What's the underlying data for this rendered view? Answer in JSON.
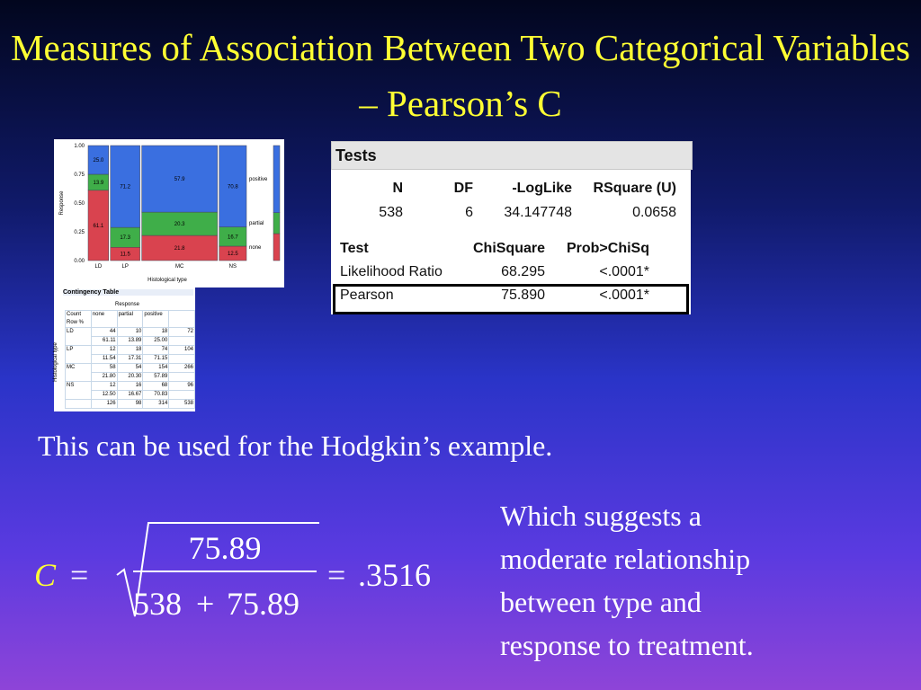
{
  "title": "Measures of Association Between Two Categorical Variables – Pearson’s C",
  "mosaic": {
    "y_label": "Response",
    "x_label": "Histological type",
    "yticks": [
      "1.00",
      "0.75",
      "0.50",
      "0.25",
      "0.00"
    ],
    "legend": [
      "positive",
      "partial",
      "none"
    ],
    "categories": [
      "LD",
      "LP",
      "MC",
      "NS"
    ],
    "cells": [
      [
        "61.1",
        "13.9",
        "25.0"
      ],
      [
        "11.5",
        "17.3",
        "71.2"
      ],
      [
        "21.8",
        "20.3",
        "57.9"
      ],
      [
        "12.5",
        "16.7",
        "70.8"
      ]
    ]
  },
  "contingency": {
    "title": "Contingency Table",
    "col_group": "Response",
    "row_group": "Histological type",
    "corner": [
      "Count",
      "Row %"
    ],
    "columns": [
      "none",
      "partial",
      "positive"
    ],
    "rows": [
      {
        "label": "LD",
        "counts": [
          "44",
          "10",
          "18",
          "72"
        ],
        "pct": [
          "61.11",
          "13.89",
          "25.00"
        ]
      },
      {
        "label": "LP",
        "counts": [
          "12",
          "18",
          "74",
          "104"
        ],
        "pct": [
          "11.54",
          "17.31",
          "71.15"
        ]
      },
      {
        "label": "MC",
        "counts": [
          "58",
          "54",
          "154",
          "266"
        ],
        "pct": [
          "21.80",
          "20.30",
          "57.89"
        ]
      },
      {
        "label": "NS",
        "counts": [
          "12",
          "16",
          "68",
          "96"
        ],
        "pct": [
          "12.50",
          "16.67",
          "70.83"
        ]
      }
    ],
    "totals": [
      "126",
      "98",
      "314",
      "538"
    ]
  },
  "tests": {
    "title": "Tests",
    "header1": [
      "N",
      "DF",
      "-LogLike",
      "RSquare (U)"
    ],
    "row1": [
      "538",
      "6",
      "34.147748",
      "0.0658"
    ],
    "header2": [
      "Test",
      "ChiSquare",
      "Prob>ChiSq"
    ],
    "rows": [
      [
        "Likelihood Ratio",
        "68.295",
        "<.0001*"
      ],
      [
        "Pearson",
        "75.890",
        "<.0001*"
      ]
    ]
  },
  "caption": "This can be used for the Hodgkin’s example.",
  "formula": {
    "lhs": "C",
    "equals": "=",
    "numerator": "75.89",
    "denominator": [
      "538",
      "+",
      "75.89"
    ],
    "result": ".3516"
  },
  "note": [
    "Which suggests a",
    "moderate relationship",
    "between type and",
    "response to treatment."
  ]
}
